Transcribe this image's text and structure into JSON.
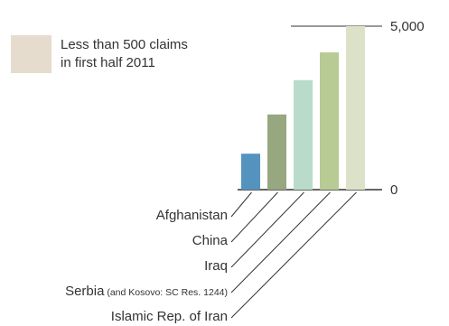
{
  "chart_data": {
    "type": "bar",
    "categories": [
      "Afghanistan",
      "China",
      "Iraq",
      "Serbia",
      "Islamic Rep. of Iran"
    ],
    "category_notes": [
      "",
      "",
      "",
      "(and Kosovo: SC Res. 1244)",
      ""
    ],
    "values": [
      1100,
      2300,
      3350,
      4200,
      5000
    ],
    "bar_colors": [
      "#5593bf",
      "#97a77f",
      "#b8dcc9",
      "#b8cb95",
      "#dbe2c8"
    ],
    "y_ticks": [
      {
        "value": 0,
        "label": "0"
      },
      {
        "value": 5000,
        "label": "5,000"
      }
    ],
    "ylim": [
      0,
      5000
    ],
    "legend": {
      "color": "#e5dccd",
      "lines": [
        "Less than 500 claims",
        "in first half 2011"
      ],
      "placement": "top-left"
    },
    "title": "",
    "xlabel": "",
    "ylabel": ""
  }
}
